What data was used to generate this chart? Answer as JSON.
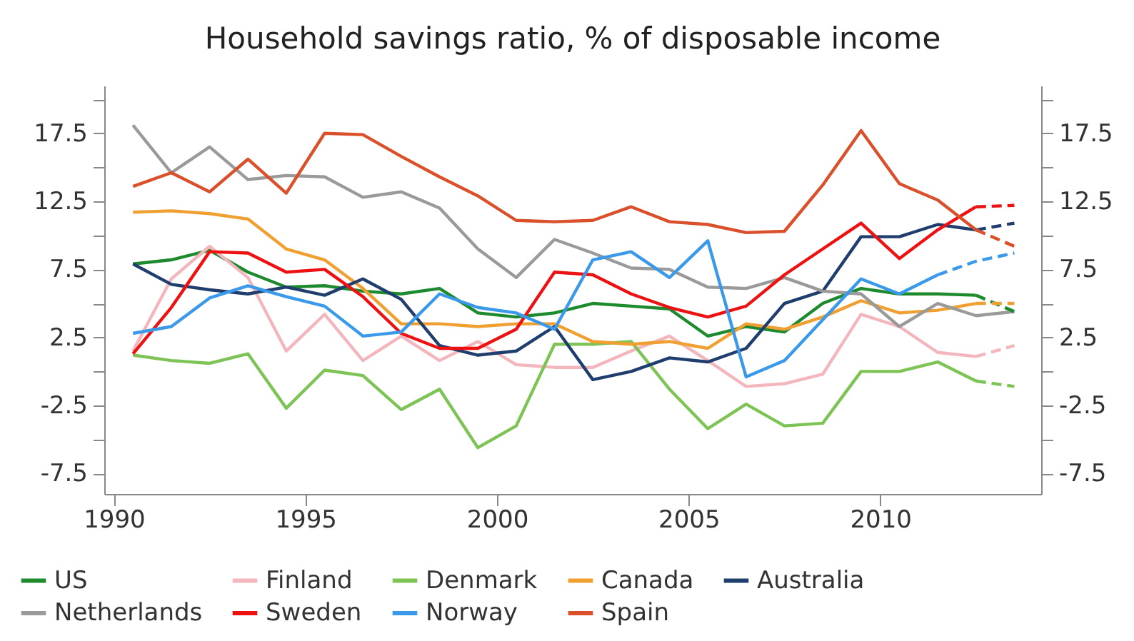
{
  "chart_data": {
    "type": "line",
    "title": "Household savings ratio, % of disposable income",
    "x": [
      1990.5,
      1991.5,
      1992.5,
      1993.5,
      1994.5,
      1995.5,
      1996.5,
      1997.5,
      1998.5,
      1999.5,
      2000.5,
      2001.5,
      2002.5,
      2003.5,
      2004.5,
      2005.5,
      2006.5,
      2007.5,
      2008.5,
      2009.5,
      2010.5,
      2011.5,
      2012.5
    ],
    "series": [
      {
        "name": "US",
        "color": "#1e8a2e",
        "values": [
          7.9,
          8.2,
          8.9,
          7.3,
          6.2,
          6.3,
          5.9,
          5.7,
          6.1,
          4.3,
          4,
          4.3,
          5,
          4.8,
          4.6,
          2.6,
          3.3,
          2.9,
          5,
          6.1,
          5.7,
          5.7,
          5.6
        ]
      },
      {
        "name": "Finland",
        "color": "#f4b6bd",
        "values": [
          1.5,
          6.8,
          9.2,
          6.9,
          1.5,
          4.2,
          0.8,
          2.6,
          0.8,
          2.2,
          0.5,
          0.3,
          0.3,
          1.5,
          2.6,
          0.8,
          -1.1,
          -0.9,
          -0.2,
          4.2,
          3.3,
          1.4,
          1.1
        ]
      },
      {
        "name": "Denmark",
        "color": "#7dc355",
        "values": [
          1.2,
          0.8,
          0.6,
          1.3,
          -2.7,
          0.1,
          -0.3,
          -2.8,
          -1.3,
          -5.6,
          -4,
          2,
          2,
          2.2,
          -1.3,
          -4.2,
          -2.4,
          -4,
          -3.8,
          0,
          0,
          0.7,
          -0.7
        ]
      },
      {
        "name": "Canada",
        "color": "#f0a030",
        "values": [
          11.7,
          11.8,
          11.6,
          11.2,
          9,
          8.2,
          6.1,
          3.5,
          3.5,
          3.3,
          3.5,
          3.5,
          2.2,
          2,
          2.2,
          1.7,
          3.5,
          3.1,
          4,
          5.2,
          4.3,
          4.5,
          5
        ]
      },
      {
        "name": "Australia",
        "color": "#1f3e6e",
        "values": [
          7.9,
          6.4,
          6,
          5.7,
          6.2,
          5.6,
          6.8,
          5.3,
          1.9,
          1.2,
          1.5,
          3.3,
          -0.6,
          0,
          1,
          0.7,
          1.7,
          5,
          5.9,
          9.9,
          9.9,
          10.8,
          10.4
        ]
      },
      {
        "name": "Netherlands",
        "color": "#9a9a9a",
        "x": [
          1990.5,
          1991.5,
          1992.5,
          1993.5,
          1994.5,
          1995.5,
          1996.5,
          1997.5,
          1998.5,
          1999.5,
          2000.5,
          2001.5,
          2002.5,
          2003.5,
          2004.5,
          2005.5,
          2006.5,
          2007.5,
          2008.5,
          2009.5,
          2010.5,
          2011.5,
          2012.5,
          2013.5
        ],
        "values": [
          18.1,
          14.6,
          16.5,
          14.1,
          14.4,
          14.3,
          12.8,
          13.2,
          12,
          9,
          6.9,
          9.7,
          8.7,
          7.6,
          7.5,
          6.2,
          6.1,
          6.9,
          5.9,
          5.7,
          3.3,
          5,
          4.1,
          4.4
        ]
      },
      {
        "name": "Sweden",
        "color": "#ee1111",
        "values": [
          1.3,
          4.7,
          8.8,
          8.7,
          7.3,
          7.5,
          5.5,
          2.8,
          1.7,
          1.7,
          3.1,
          7.3,
          7.1,
          5.7,
          4.7,
          4,
          4.8,
          7.1,
          9,
          10.9,
          8.3,
          10.4,
          12.1
        ]
      },
      {
        "name": "Norway",
        "color": "#3a99e8",
        "x": [
          1990.5,
          1991.5,
          1992.5,
          1993.5,
          1994.5,
          1995.5,
          1996.5,
          1997.5,
          1998.5,
          1999.5,
          2000.5,
          2001.5,
          2002.5,
          2003.5,
          2004.5,
          2005.5,
          2006.5,
          2007.5,
          2008.5,
          2009.5,
          2010.5,
          2011.5
        ],
        "values": [
          2.8,
          3.3,
          5.4,
          6.3,
          5.5,
          4.8,
          2.6,
          2.9,
          5.7,
          4.7,
          4.3,
          3.1,
          8.2,
          8.8,
          6.9,
          9.6,
          -0.4,
          0.8,
          3.8,
          6.8,
          5.7,
          7.1
        ]
      },
      {
        "name": "Spain",
        "color": "#d9502a",
        "values": [
          13.6,
          14.6,
          13.2,
          15.6,
          13.1,
          17.5,
          17.4,
          15.8,
          14.3,
          12.9,
          11.1,
          11,
          11.1,
          12.1,
          11,
          10.8,
          10.2,
          10.3,
          13.7,
          17.7,
          13.8,
          12.6,
          10.4
        ]
      },
      {
        "color": "#1e8a2e",
        "axis": "y2",
        "line_style": "dashed",
        "x": [
          2012.5,
          2013.5
        ],
        "values": [
          5.6,
          4.4
        ]
      },
      {
        "color": "#f4b6bd",
        "axis": "y2",
        "line_style": "dashed",
        "x": [
          2012.5,
          2013.5
        ],
        "values": [
          1.1,
          1.9
        ]
      },
      {
        "color": "#7dc355",
        "axis": "y2",
        "line_style": "dashed",
        "x": [
          2012.5,
          2013.5
        ],
        "values": [
          -0.7,
          -1.1
        ]
      },
      {
        "color": "#f0a030",
        "axis": "y2",
        "line_style": "dashed",
        "x": [
          2012.5,
          2013.5
        ],
        "values": [
          5,
          5
        ]
      },
      {
        "color": "#1f3e6e",
        "axis": "y2",
        "line_style": "dashed",
        "x": [
          2012.5,
          2013.5
        ],
        "values": [
          10.4,
          10.9
        ]
      },
      {
        "color": "#ee1111",
        "axis": "y2",
        "line_style": "dashed",
        "x": [
          2012.5,
          2013.5
        ],
        "values": [
          12.1,
          12.2
        ]
      },
      {
        "color": "#3a99e8",
        "axis": "y2",
        "line_style": "dashed",
        "x": [
          2011.5,
          2012.5,
          2013.5
        ],
        "values": [
          7.1,
          8.1,
          8.7
        ]
      },
      {
        "color": "#d9502a",
        "axis": "y2",
        "line_style": "dashed",
        "x": [
          2012.5,
          2013.5
        ],
        "values": [
          10.4,
          9.2
        ]
      }
    ],
    "xlim": [
      1989.75,
      2014.2
    ],
    "xticks": [
      1990,
      1995,
      2000,
      2005,
      2010
    ],
    "ylim": [
      -9,
      21
    ],
    "yticks": [
      {
        "value": 20,
        "label": null
      },
      {
        "value": 17.5,
        "label": "17.5"
      },
      {
        "value": 15,
        "label": null
      },
      {
        "value": 12.5,
        "label": "12.5"
      },
      {
        "value": 10,
        "label": null
      },
      {
        "value": 7.5,
        "label": "7.5"
      },
      {
        "value": 5,
        "label": null
      },
      {
        "value": 2.5,
        "label": "2.5"
      },
      {
        "value": 0,
        "label": null
      },
      {
        "value": -2.5,
        "label": "-2.5"
      },
      {
        "value": -5,
        "label": null
      },
      {
        "value": -7.5,
        "label": "-7.5"
      }
    ],
    "y2lim": [
      -9,
      21
    ],
    "y2ticks": [
      {
        "value": 20,
        "label": null
      },
      {
        "value": 17.5,
        "label": "17.5"
      },
      {
        "value": 15,
        "label": null
      },
      {
        "value": 12.5,
        "label": "12.5"
      },
      {
        "value": 10,
        "label": null
      },
      {
        "value": 7.5,
        "label": "7.5"
      },
      {
        "value": 5,
        "label": null
      },
      {
        "value": 2.5,
        "label": "2.5"
      },
      {
        "value": 0,
        "label": null
      },
      {
        "value": -2.5,
        "label": "-2.5"
      },
      {
        "value": -5,
        "label": null
      },
      {
        "value": -7.5,
        "label": "-7.5"
      }
    ],
    "grid": false,
    "legend": "bottom",
    "marker": "none",
    "line_style": "solid"
  }
}
